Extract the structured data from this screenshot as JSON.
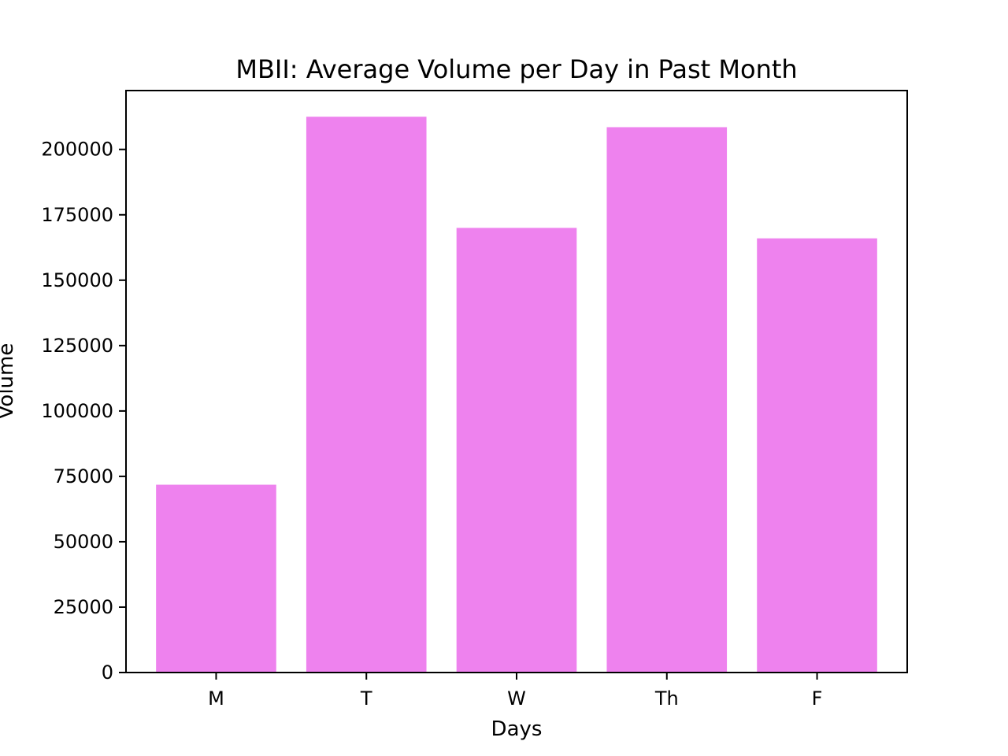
{
  "chart_data": {
    "type": "bar",
    "title": "MBII: Average Volume per Day in Past Month",
    "xlabel": "Days",
    "ylabel": "Volume",
    "categories": [
      "M",
      "T",
      "W",
      "Th",
      "F"
    ],
    "values": [
      71800,
      212500,
      170000,
      208500,
      166000
    ],
    "ylim": [
      0,
      222500
    ],
    "yticks": [
      0,
      25000,
      50000,
      75000,
      100000,
      125000,
      150000,
      175000,
      200000
    ],
    "ytick_labels": [
      "0",
      "25000",
      "50000",
      "75000",
      "100000",
      "125000",
      "150000",
      "175000",
      "200000"
    ],
    "bar_color": "#ee82ee",
    "grid": false,
    "legend": "none"
  }
}
